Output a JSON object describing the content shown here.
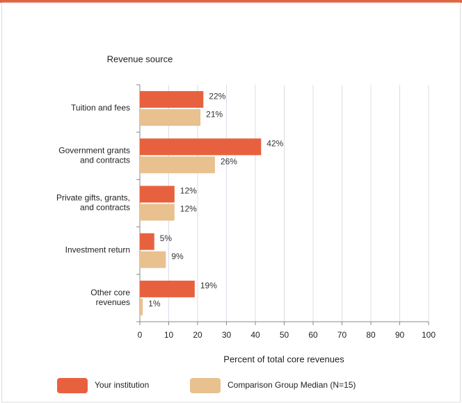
{
  "chart_data": {
    "type": "bar",
    "orientation": "horizontal",
    "y_axis_title": "Revenue source",
    "x_axis_title": "Percent of total core revenues",
    "categories": [
      [
        "Tuition and fees"
      ],
      [
        "Government grants",
        "and contracts"
      ],
      [
        "Private gifts, grants,",
        "and contracts"
      ],
      [
        "Investment return"
      ],
      [
        "Other core",
        "revenues"
      ]
    ],
    "series": [
      {
        "name": "Your institution",
        "color": "#e8613f",
        "values": [
          22,
          42,
          12,
          5,
          19
        ],
        "value_labels": [
          "22%",
          "42%",
          "12%",
          "5%",
          "19%"
        ]
      },
      {
        "name": "Comparison Group Median (N=15)",
        "color": "#e8c18f",
        "values": [
          21,
          26,
          12,
          9,
          1
        ],
        "value_labels": [
          "21%",
          "26%",
          "12%",
          "9%",
          "1%"
        ]
      }
    ],
    "xlim": [
      0,
      100
    ],
    "xticks": [
      0,
      10,
      20,
      30,
      40,
      50,
      60,
      70,
      80,
      90,
      100
    ],
    "grid": true
  }
}
